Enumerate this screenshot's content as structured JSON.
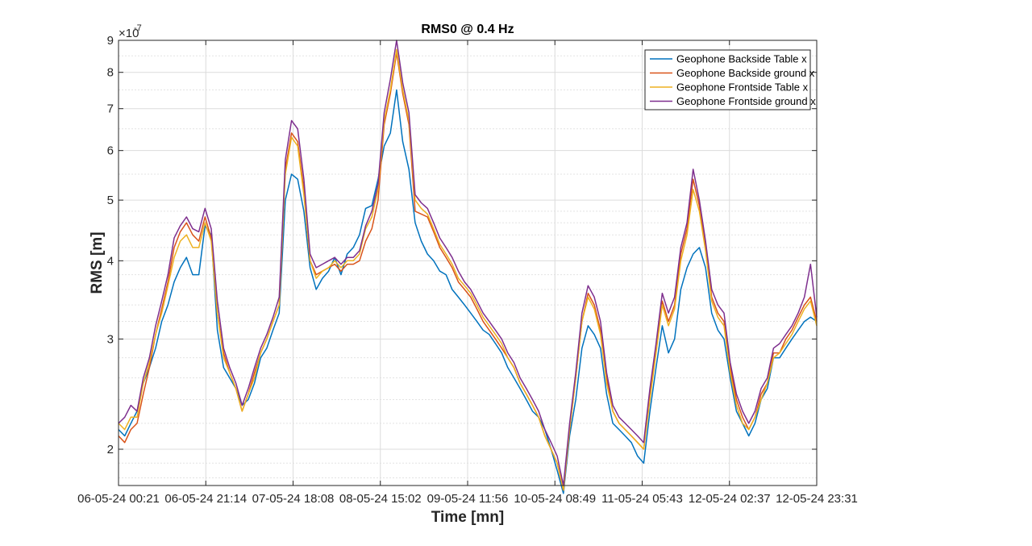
{
  "chart_data": {
    "type": "line",
    "title": "RMS0 @ 0.4 Hz",
    "xlabel": "Time [mn]",
    "ylabel": "RMS [m]",
    "y_scale": "log",
    "y_multiplier": "×10",
    "y_exponent": "-7",
    "ylim": [
      1.75,
      9.0
    ],
    "yticks": [
      2,
      3,
      4,
      5,
      6,
      7,
      8,
      9
    ],
    "x_tick_labels": [
      "06-05-24 00:21",
      "06-05-24 21:14",
      "07-05-24 18:08",
      "08-05-24 15:02",
      "09-05-24 11:56",
      "10-05-24 08:49",
      "11-05-24 05:43",
      "12-05-24 02:37",
      "12-05-24 23:31"
    ],
    "grid": true,
    "legend_position": "top-right",
    "x_tick_count": 9,
    "series": [
      {
        "name": "Geophone Backside Table x",
        "color": "#0072BD",
        "values": [
          2.15,
          2.1,
          2.2,
          2.3,
          2.55,
          2.7,
          2.9,
          3.2,
          3.4,
          3.7,
          3.9,
          4.05,
          3.8,
          3.8,
          4.55,
          4.4,
          3.1,
          2.7,
          2.6,
          2.5,
          2.35,
          2.4,
          2.55,
          2.8,
          2.9,
          3.1,
          3.3,
          5.0,
          5.5,
          5.4,
          4.8,
          3.9,
          3.6,
          3.75,
          3.85,
          4.05,
          3.8,
          4.1,
          4.2,
          4.4,
          4.85,
          4.9,
          5.4,
          6.1,
          6.4,
          7.5,
          6.2,
          5.6,
          4.6,
          4.3,
          4.1,
          4.0,
          3.85,
          3.8,
          3.6,
          3.5,
          3.4,
          3.3,
          3.2,
          3.1,
          3.05,
          2.95,
          2.85,
          2.7,
          2.6,
          2.5,
          2.4,
          2.3,
          2.25,
          2.15,
          2.0,
          1.85,
          1.7,
          2.1,
          2.4,
          2.9,
          3.15,
          3.05,
          2.9,
          2.45,
          2.2,
          2.15,
          2.1,
          2.05,
          1.95,
          1.9,
          2.3,
          2.7,
          3.15,
          2.85,
          3.0,
          3.6,
          3.9,
          4.1,
          4.2,
          3.9,
          3.3,
          3.1,
          3.0,
          2.6,
          2.3,
          2.2,
          2.1,
          2.2,
          2.4,
          2.5,
          2.8,
          2.8,
          2.9,
          3.0,
          3.1,
          3.2,
          3.25,
          3.2
        ]
      },
      {
        "name": "Geophone Backside ground x",
        "color": "#D95319",
        "values": [
          2.1,
          2.05,
          2.15,
          2.2,
          2.45,
          2.7,
          3.05,
          3.35,
          3.7,
          4.2,
          4.45,
          4.6,
          4.4,
          4.3,
          4.7,
          4.35,
          3.3,
          2.85,
          2.65,
          2.5,
          2.3,
          2.45,
          2.65,
          2.85,
          3.0,
          3.2,
          3.4,
          5.6,
          6.4,
          6.2,
          5.2,
          4.0,
          3.8,
          3.85,
          3.9,
          3.95,
          3.85,
          3.95,
          3.95,
          4.0,
          4.3,
          4.5,
          5.0,
          6.6,
          7.4,
          8.6,
          7.4,
          6.6,
          4.8,
          4.75,
          4.7,
          4.45,
          4.2,
          4.05,
          3.9,
          3.7,
          3.6,
          3.5,
          3.35,
          3.2,
          3.1,
          3.0,
          2.9,
          2.8,
          2.7,
          2.55,
          2.45,
          2.35,
          2.25,
          2.1,
          2.0,
          1.9,
          1.72,
          2.15,
          2.6,
          3.2,
          3.55,
          3.4,
          3.1,
          2.6,
          2.3,
          2.2,
          2.15,
          2.1,
          2.05,
          2.0,
          2.45,
          2.9,
          3.45,
          3.2,
          3.4,
          4.1,
          4.5,
          5.4,
          4.9,
          4.2,
          3.5,
          3.3,
          3.2,
          2.7,
          2.4,
          2.25,
          2.15,
          2.25,
          2.45,
          2.55,
          2.85,
          2.85,
          3.0,
          3.1,
          3.25,
          3.4,
          3.5,
          3.2
        ]
      },
      {
        "name": "Geophone Frontside Table x",
        "color": "#EDB120",
        "values": [
          2.2,
          2.15,
          2.25,
          2.25,
          2.55,
          2.75,
          3.05,
          3.3,
          3.65,
          4.05,
          4.3,
          4.4,
          4.2,
          4.2,
          4.6,
          4.3,
          3.3,
          2.8,
          2.65,
          2.5,
          2.3,
          2.45,
          2.6,
          2.85,
          3.0,
          3.2,
          3.4,
          5.5,
          6.3,
          6.1,
          5.1,
          4.0,
          3.75,
          3.85,
          3.9,
          4.0,
          3.9,
          4.0,
          4.0,
          4.1,
          4.5,
          4.7,
          5.2,
          6.7,
          7.5,
          8.7,
          7.5,
          6.7,
          5.0,
          4.85,
          4.75,
          4.5,
          4.25,
          4.1,
          3.95,
          3.75,
          3.65,
          3.55,
          3.4,
          3.25,
          3.15,
          3.05,
          2.95,
          2.8,
          2.7,
          2.55,
          2.45,
          2.35,
          2.25,
          2.1,
          2.0,
          1.9,
          1.72,
          2.15,
          2.6,
          3.2,
          3.5,
          3.35,
          3.05,
          2.55,
          2.3,
          2.2,
          2.15,
          2.1,
          2.05,
          2.0,
          2.4,
          2.85,
          3.4,
          3.15,
          3.35,
          4.0,
          4.4,
          5.2,
          4.8,
          4.15,
          3.45,
          3.25,
          3.15,
          2.65,
          2.35,
          2.2,
          2.15,
          2.25,
          2.4,
          2.55,
          2.8,
          2.85,
          2.95,
          3.05,
          3.2,
          3.35,
          3.45,
          3.15
        ]
      },
      {
        "name": "Geophone Frontside ground x",
        "color": "#7E2F8E",
        "values": [
          2.2,
          2.25,
          2.35,
          2.3,
          2.6,
          2.8,
          3.15,
          3.45,
          3.8,
          4.35,
          4.55,
          4.7,
          4.5,
          4.45,
          4.85,
          4.5,
          3.45,
          2.9,
          2.7,
          2.55,
          2.35,
          2.5,
          2.7,
          2.9,
          3.05,
          3.25,
          3.5,
          5.8,
          6.7,
          6.5,
          5.4,
          4.1,
          3.9,
          3.95,
          4.0,
          4.05,
          3.95,
          4.05,
          4.05,
          4.15,
          4.55,
          4.8,
          5.3,
          6.9,
          7.8,
          9.0,
          7.7,
          6.9,
          5.1,
          4.95,
          4.85,
          4.6,
          4.35,
          4.2,
          4.05,
          3.85,
          3.7,
          3.6,
          3.45,
          3.3,
          3.2,
          3.1,
          3.0,
          2.85,
          2.75,
          2.6,
          2.5,
          2.4,
          2.3,
          2.15,
          2.05,
          1.95,
          1.75,
          2.2,
          2.65,
          3.3,
          3.65,
          3.5,
          3.2,
          2.65,
          2.35,
          2.25,
          2.2,
          2.15,
          2.1,
          2.05,
          2.5,
          2.95,
          3.55,
          3.3,
          3.5,
          4.2,
          4.6,
          5.6,
          5.0,
          4.3,
          3.6,
          3.4,
          3.3,
          2.75,
          2.45,
          2.3,
          2.2,
          2.3,
          2.5,
          2.6,
          2.9,
          2.95,
          3.05,
          3.15,
          3.3,
          3.5,
          3.95,
          3.25
        ]
      }
    ]
  }
}
